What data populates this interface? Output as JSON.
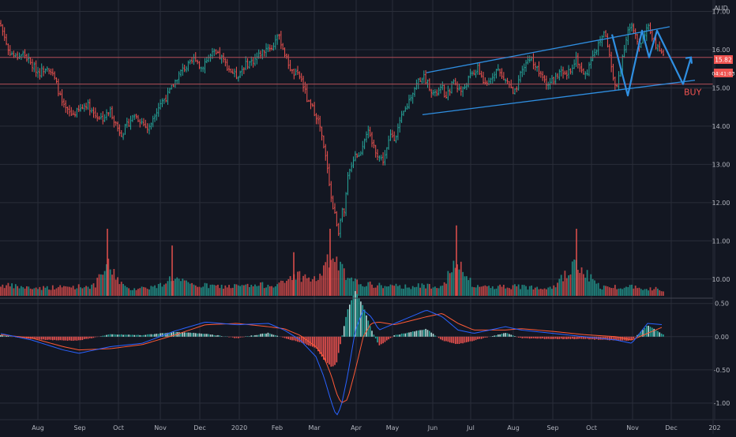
{
  "chart_data": {
    "type": "candlestick",
    "currency": "AUD",
    "last_price": "15.82",
    "countdown": "04:41:03",
    "x_tick_labels": [
      "Aug",
      "Sep",
      "Oct",
      "Nov",
      "Dec",
      "2020",
      "Feb",
      "Mar",
      "Apr",
      "May",
      "Jun",
      "Jul",
      "Aug",
      "Sep",
      "Oct",
      "Nov",
      "Dec",
      "202"
    ],
    "price_axis": {
      "ylim": [
        9.5,
        17.3
      ],
      "tick_labels": [
        "17.00",
        "16.00",
        "15.00",
        "14.00",
        "13.00",
        "12.00",
        "11.00",
        "10.00"
      ],
      "tick_values": [
        17,
        16,
        15,
        14,
        13,
        12,
        11,
        10
      ]
    },
    "price_series": {
      "x": [
        0,
        5,
        10,
        20,
        30,
        40,
        50,
        60,
        70,
        80,
        90,
        100,
        110,
        120,
        130,
        140,
        150,
        155,
        160,
        170,
        180,
        188,
        195,
        203,
        212,
        220,
        225,
        232,
        240,
        248,
        254,
        260,
        270,
        280,
        290,
        300,
        310,
        320,
        330,
        340,
        345,
        350,
        356,
        362,
        370,
        380,
        385,
        390,
        395,
        400,
        405,
        410,
        415,
        420,
        425,
        430,
        432,
        435,
        440,
        445,
        450,
        455,
        460,
        465,
        470,
        475,
        480,
        485,
        490,
        495,
        500,
        505,
        510,
        515,
        520,
        525,
        530,
        535,
        540,
        545,
        550,
        555,
        560,
        565,
        570,
        575,
        580,
        585,
        590,
        595,
        600,
        605,
        610,
        615,
        620,
        625,
        630,
        635,
        640,
        645,
        650,
        655,
        660,
        665,
        670,
        675,
        680,
        685,
        690,
        695,
        700,
        705,
        710,
        715,
        720,
        725,
        730,
        735,
        740,
        745,
        750,
        755,
        760,
        765,
        770,
        775,
        780,
        785,
        790,
        795,
        800,
        805,
        810,
        815,
        820,
        825,
        830,
        835,
        840
      ],
      "close": [
        16.7,
        16.4,
        16.0,
        15.8,
        15.9,
        15.6,
        15.4,
        15.6,
        15.2,
        14.5,
        14.3,
        14.4,
        14.6,
        14.3,
        14.2,
        14.4,
        13.9,
        13.8,
        14.0,
        14.3,
        14.1,
        13.9,
        14.3,
        14.6,
        14.8,
        15.1,
        15.3,
        15.5,
        15.6,
        15.8,
        15.5,
        15.7,
        15.9,
        15.8,
        15.5,
        15.3,
        15.6,
        15.7,
        15.9,
        16.1,
        16.0,
        16.4,
        16.2,
        15.8,
        15.4,
        15.3,
        15.0,
        14.6,
        14.5,
        14.3,
        14.0,
        13.4,
        12.9,
        12.0,
        11.6,
        11.1,
        12.1,
        11.5,
        12.6,
        13.0,
        13.3,
        13.2,
        13.6,
        13.9,
        13.6,
        13.4,
        13.2,
        13.1,
        13.4,
        13.8,
        13.7,
        14.0,
        14.3,
        14.5,
        14.8,
        15.0,
        15.2,
        15.3,
        15.2,
        15.0,
        14.8,
        14.9,
        15.0,
        14.7,
        15.0,
        15.2,
        15.0,
        14.9,
        15.1,
        15.3,
        15.4,
        15.5,
        15.3,
        15.0,
        15.2,
        15.4,
        15.5,
        15.3,
        15.2,
        15.1,
        14.8,
        15.0,
        15.4,
        15.6,
        15.8,
        15.7,
        15.5,
        15.3,
        15.2,
        15.1,
        15.2,
        15.3,
        15.4,
        15.3,
        15.4,
        15.6,
        15.8,
        15.5,
        15.3,
        15.5,
        15.9,
        16.0,
        16.2,
        16.5,
        16.1,
        15.4,
        14.9,
        15.5,
        16.0,
        16.5,
        16.6,
        16.3,
        16.1,
        16.4,
        16.6,
        16.4,
        16.1,
        16.0,
        15.8
      ],
      "name": ""
    },
    "volume_series": {
      "x": [
        0,
        40,
        80,
        120,
        136,
        160,
        200,
        218,
        240,
        280,
        320,
        360,
        372,
        400,
        410,
        418,
        425,
        432,
        440,
        470,
        500,
        540,
        560,
        578,
        600,
        640,
        680,
        700,
        730,
        760,
        800,
        840
      ],
      "relative_values": [
        0.35,
        0.25,
        0.28,
        0.32,
        1.0,
        0.22,
        0.3,
        0.6,
        0.35,
        0.3,
        0.32,
        0.4,
        0.7,
        0.5,
        0.85,
        1.2,
        1.1,
        0.9,
        0.5,
        0.35,
        0.3,
        0.32,
        0.35,
        1.05,
        0.3,
        0.3,
        0.28,
        0.3,
        1.0,
        0.28,
        0.3,
        0.2
      ]
    },
    "indicator_axis": {
      "ylim": [
        -1.25,
        0.58
      ],
      "tick_labels": [
        "0.50",
        "0.00",
        "-0.50",
        "-1.00"
      ],
      "tick_values": [
        0.5,
        0.0,
        -0.5,
        -1.0
      ]
    },
    "macd_series": {
      "x": [
        0,
        40,
        80,
        100,
        140,
        180,
        220,
        260,
        300,
        340,
        360,
        380,
        400,
        410,
        420,
        426,
        432,
        440,
        450,
        460,
        470,
        480,
        500,
        540,
        560,
        580,
        600,
        640,
        660,
        700,
        740,
        780,
        800,
        820,
        840
      ],
      "macd": [
        0.05,
        -0.05,
        -0.2,
        -0.25,
        -0.15,
        -0.1,
        0.08,
        0.22,
        0.18,
        0.2,
        0.1,
        -0.05,
        -0.3,
        -0.6,
        -1.0,
        -1.2,
        -1.05,
        -0.6,
        0.1,
        0.4,
        0.3,
        0.1,
        0.2,
        0.4,
        0.3,
        0.1,
        0.05,
        0.15,
        0.1,
        0.05,
        0.0,
        -0.05,
        -0.1,
        0.2,
        0.18
      ],
      "signal": [
        0.03,
        -0.02,
        -0.15,
        -0.2,
        -0.18,
        -0.12,
        0.02,
        0.18,
        0.2,
        0.15,
        0.12,
        0.02,
        -0.15,
        -0.3,
        -0.6,
        -0.85,
        -1.0,
        -0.95,
        -0.5,
        0.0,
        0.2,
        0.22,
        0.18,
        0.3,
        0.35,
        0.2,
        0.1,
        0.1,
        0.12,
        0.08,
        0.03,
        0.0,
        -0.05,
        0.05,
        0.15
      ]
    },
    "annotations": {
      "channel_upper": [
        [
          540,
          15.4
        ],
        [
          848,
          16.6
        ]
      ],
      "channel_lower": [
        [
          535,
          14.3
        ],
        [
          880,
          15.2
        ]
      ],
      "horizontal_levels": [
        15.8,
        15.1
      ],
      "projected_path": [
        [
          775,
          16.4
        ],
        [
          795,
          14.8
        ],
        [
          813,
          16.5
        ],
        [
          822,
          15.8
        ],
        [
          832,
          16.5
        ],
        [
          865,
          15.1
        ],
        [
          875,
          15.8
        ]
      ],
      "buy_label": "BUY",
      "buy_label_position": [
        866,
        14.9
      ]
    },
    "colors": {
      "background": "#131722",
      "grid": "#2a2e39",
      "up": "#26a69a",
      "down": "#ef5350",
      "annotation": "#2f8fe2",
      "macd": "#2962ff",
      "signal": "#ff5a36",
      "level": "#b24f58",
      "axis_text": "#b2b5be"
    },
    "grid": true
  }
}
